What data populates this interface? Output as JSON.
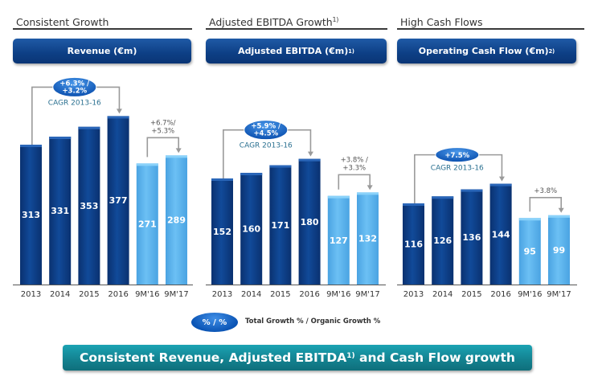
{
  "sections": [
    {
      "title": "Consistent Growth",
      "title_sup": "",
      "header": "Revenue (€m)",
      "header_sup": ""
    },
    {
      "title": "Adjusted EBITDA Growth",
      "title_sup": "1)",
      "header": "Adjusted EBITDA (€m)",
      "header_sup": "1)"
    },
    {
      "title": "High Cash Flows",
      "title_sup": "",
      "header": "Operating Cash Flow (€m)",
      "header_sup": "2)"
    }
  ],
  "legend": {
    "oval_label": "% / %",
    "text": "Total Growth % / Organic Growth %"
  },
  "banner": {
    "text_before": "Consistent Revenue, Adjusted EBITDA",
    "sup": "1)",
    "text_after": " and Cash Flow growth"
  },
  "colors": {
    "annual_bar": "#0d3f85",
    "interim_bar": "#5cb3ee",
    "bracket": "#999999",
    "oval": "#0b55b5",
    "cagr_text": "#2a6f8a",
    "banner": "#13818f"
  },
  "chart_data": [
    {
      "type": "bar",
      "title": "Revenue (€m)",
      "categories": [
        "2013",
        "2014",
        "2015",
        "2016",
        "9M'16",
        "9M'17"
      ],
      "values": [
        313,
        331,
        353,
        377,
        271,
        289
      ],
      "period_type": [
        "annual",
        "annual",
        "annual",
        "annual",
        "interim",
        "interim"
      ],
      "cagr_label": "CAGR 2013-16",
      "cagr_growth": [
        "+6.3% /",
        "+3.2%"
      ],
      "interim_growth": [
        "+6.7%/",
        "+5.3%"
      ]
    },
    {
      "type": "bar",
      "title": "Adjusted EBITDA (€m)",
      "categories": [
        "2013",
        "2014",
        "2015",
        "2016",
        "9M'16",
        "9M'17"
      ],
      "values": [
        152,
        160,
        171,
        180,
        127,
        132
      ],
      "period_type": [
        "annual",
        "annual",
        "annual",
        "annual",
        "interim",
        "interim"
      ],
      "cagr_label": "CAGR 2013-16",
      "cagr_growth": [
        "+5.9% /",
        "+4.5%"
      ],
      "interim_growth": [
        "+3.8% /",
        "+3.3%"
      ]
    },
    {
      "type": "bar",
      "title": "Operating Cash Flow (€m)",
      "categories": [
        "2013",
        "2014",
        "2015",
        "2016",
        "9M'16",
        "9M'17"
      ],
      "values": [
        116,
        126,
        136,
        144,
        95,
        99
      ],
      "period_type": [
        "annual",
        "annual",
        "annual",
        "annual",
        "interim",
        "interim"
      ],
      "cagr_label": "CAGR 2013-16",
      "cagr_growth": [
        "+7.5%"
      ],
      "interim_growth": [
        "+3.8%"
      ]
    }
  ]
}
